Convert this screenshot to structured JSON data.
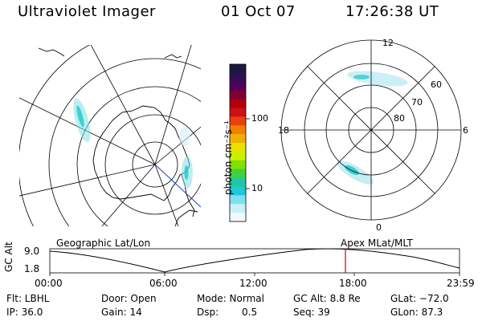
{
  "header": {
    "title": "Ultraviolet Imager",
    "date": "01 Oct 07",
    "time": "17:26:38 UT"
  },
  "colorbar": {
    "unit_label": "photon cm⁻²s⁻¹",
    "ticks": [
      "100",
      "10"
    ],
    "colors": [
      "#1a1a40",
      "#301050",
      "#500060",
      "#800030",
      "#b00010",
      "#d01010",
      "#e84010",
      "#f08000",
      "#f0b000",
      "#e8e000",
      "#c8f000",
      "#80e000",
      "#40d040",
      "#20c8a0",
      "#20c8d8",
      "#80e0f0",
      "#c8f0f8",
      "#f0f8fc"
    ]
  },
  "right_map": {
    "mlt_labels": [
      "12",
      "18",
      "6",
      "0"
    ],
    "lat_labels": [
      "60",
      "70",
      "80"
    ]
  },
  "timeline": {
    "left_label": "Geographic Lat/Lon",
    "right_label": "Apex MLat/MLT",
    "y_axis_label": "GC Alt",
    "y_max_label": "9.0",
    "y_min_label": "1.8",
    "time_ticks": [
      "00:00",
      "06:00",
      "12:00",
      "18:00",
      "23:59"
    ],
    "current_time_color": "#cc0000"
  },
  "info": {
    "filter": "Flt: LBHL",
    "door": "Door: Open",
    "mode": "Mode: Normal",
    "gc_alt": "GC Alt: 8.8 Re",
    "glat": "GLat: −72.0",
    "ip": "IP: 36.0",
    "gain": "Gain: 14",
    "dsp_label": "Dsp:",
    "dsp_value": "0.5",
    "seq": "Seq: 39",
    "glon": "GLon:  87.3"
  }
}
